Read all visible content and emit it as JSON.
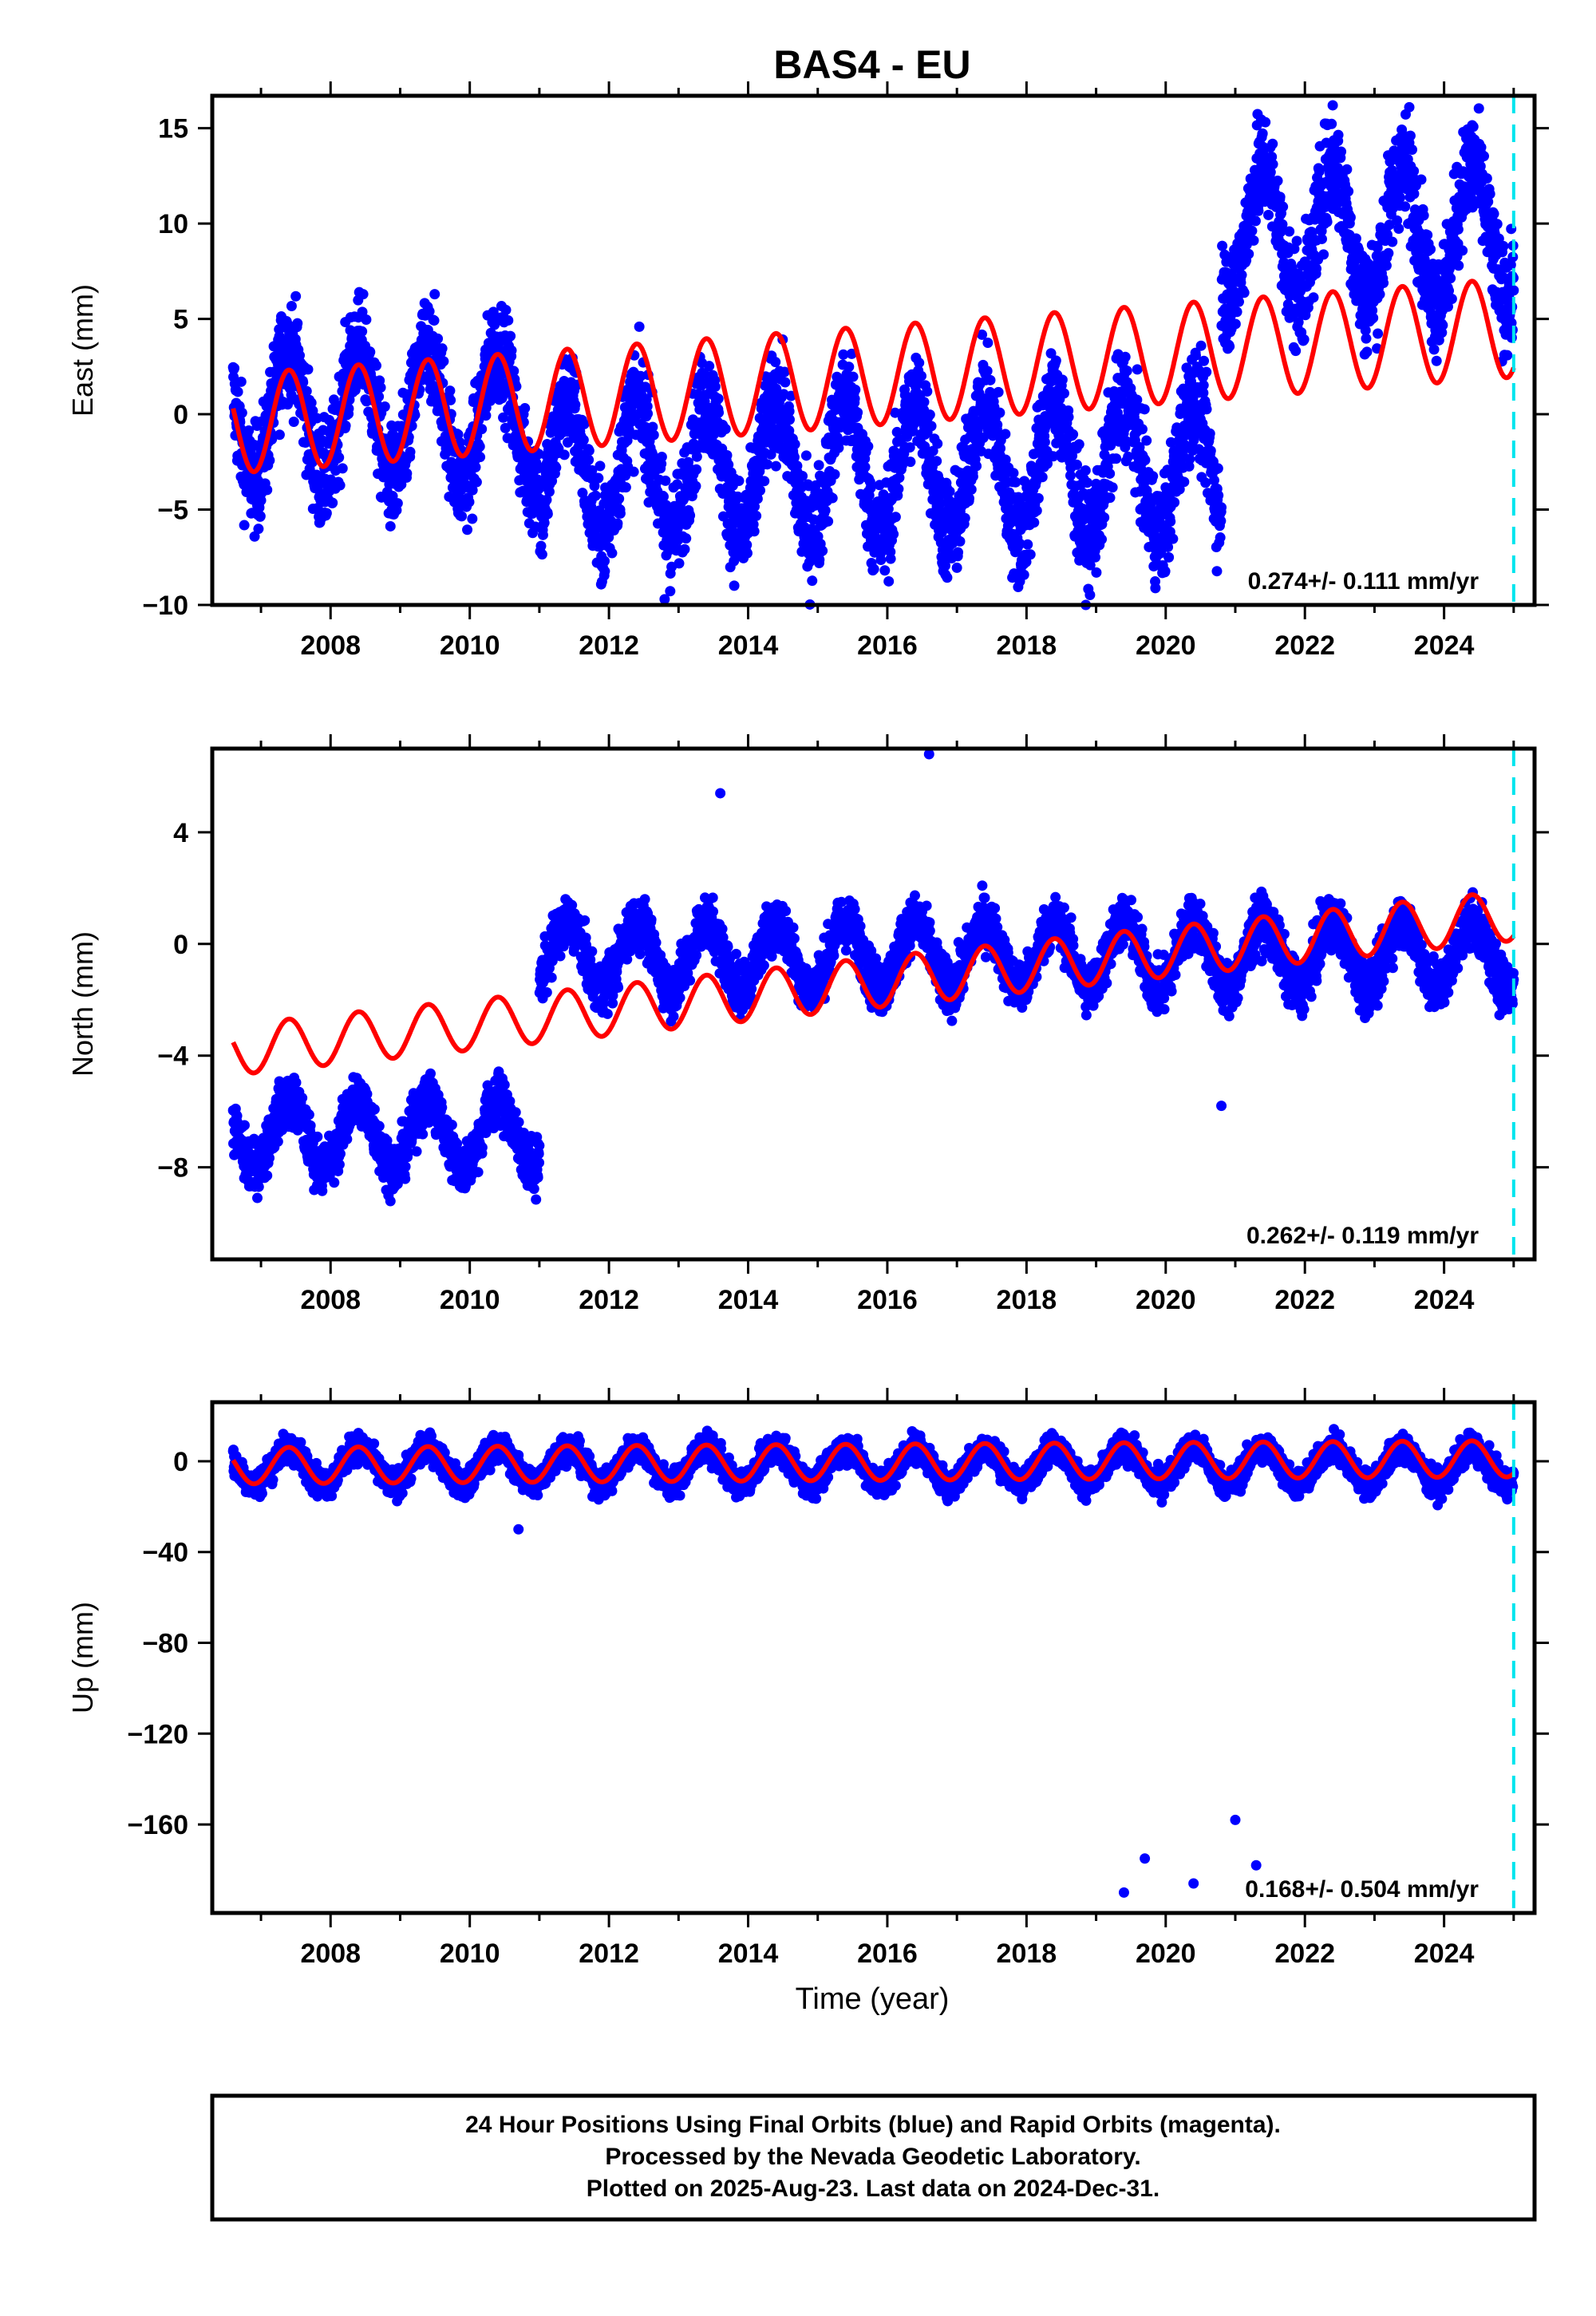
{
  "title": "BAS4 - EU",
  "x_axis_label": "Time (year)",
  "footer": {
    "line1": "24 Hour Positions Using Final Orbits (blue) and Rapid Orbits (magenta).",
    "line2": "Processed by the Nevada Geodetic Laboratory.",
    "line3": "Plotted on 2025-Aug-23. Last data on 2024-Dec-31."
  },
  "colors": {
    "final_orbits": "#0000ff",
    "rapid_orbits": "#ff00ff",
    "model_fit": "#ff0000",
    "last_data_marker": "#00e5ee",
    "frame": "#000000"
  },
  "chart_data": [
    {
      "type": "scatter",
      "panel": "east",
      "ylabel": "East (mm)",
      "rate_text": "0.274+/- 0.111 mm/yr",
      "xlim": [
        2006.3,
        2025.3
      ],
      "ylim": [
        -10,
        16.7
      ],
      "xticks": [
        2008,
        2010,
        2012,
        2014,
        2016,
        2018,
        2020,
        2022,
        2024
      ],
      "yticks": [
        -10,
        -5,
        0,
        5,
        10,
        15
      ],
      "ytick_labels": [
        "−10",
        "−5",
        "0",
        "5",
        "10",
        "15"
      ],
      "last_data_year": 2025.0,
      "observations": {
        "name": "24 hour positions",
        "x_range": [
          2006.6,
          2025.0
        ],
        "segments": [
          {
            "from": 2006.6,
            "to": 2011.0,
            "level_mm": 0.0
          },
          {
            "from": 2011.0,
            "to": 2020.8,
            "level_mm": -2.8
          },
          {
            "from": 2020.8,
            "to": 2025.0,
            "level_mm": 9.5
          }
        ],
        "annual_amplitude_mm": 3.5,
        "outliers": [
          [
            2012.8,
            -9.7
          ],
          [
            2022.4,
            16.2
          ],
          [
            2023.5,
            16.1
          ]
        ]
      },
      "model": {
        "name": "linear + seasonal fit",
        "start_value_mm": -0.5,
        "trend_mm_per_yr": 0.274,
        "annual_amplitude_mm": 2.6
      }
    },
    {
      "type": "scatter",
      "panel": "north",
      "ylabel": "North (mm)",
      "rate_text": "0.262+/- 0.119 mm/yr",
      "xlim": [
        2006.3,
        2025.3
      ],
      "ylim": [
        -11.3,
        7.0
      ],
      "xticks": [
        2008,
        2010,
        2012,
        2014,
        2016,
        2018,
        2020,
        2022,
        2024
      ],
      "yticks": [
        -8,
        -4,
        0,
        4
      ],
      "ytick_labels": [
        "−8",
        "−4",
        "0",
        "4"
      ],
      "last_data_year": 2025.0,
      "observations": {
        "name": "24 hour positions",
        "x_range": [
          2006.6,
          2025.0
        ],
        "segments": [
          {
            "from": 2006.6,
            "to": 2011.0,
            "level_mm": -6.8
          },
          {
            "from": 2011.0,
            "to": 2025.0,
            "level_mm": -0.4
          }
        ],
        "annual_amplitude_mm": 1.2,
        "outliers": [
          [
            2013.6,
            5.4
          ],
          [
            2016.6,
            6.8
          ],
          [
            2020.8,
            -5.8
          ]
        ]
      },
      "model": {
        "name": "linear + seasonal fit",
        "start_value_mm": -3.8,
        "trend_mm_per_yr": 0.262,
        "annual_amplitude_mm": 0.9
      }
    },
    {
      "type": "scatter",
      "panel": "up",
      "ylabel": "Up (mm)",
      "rate_text": "0.168+/- 0.504 mm/yr",
      "xlim": [
        2006.3,
        2025.3
      ],
      "ylim": [
        -199,
        26
      ],
      "xticks": [
        2008,
        2010,
        2012,
        2014,
        2016,
        2018,
        2020,
        2022,
        2024
      ],
      "yticks": [
        -160,
        -120,
        -80,
        -40,
        0
      ],
      "ytick_labels": [
        "−160",
        "−120",
        "−80",
        "−40",
        "0"
      ],
      "last_data_year": 2025.0,
      "observations": {
        "name": "24 hour positions",
        "x_range": [
          2006.6,
          2025.0
        ],
        "segments": [
          {
            "from": 2006.6,
            "to": 2025.0,
            "level_mm": -2.0
          }
        ],
        "annual_amplitude_mm": 8.0,
        "outliers": [
          [
            2010.7,
            -30
          ],
          [
            2019.4,
            -190
          ],
          [
            2019.7,
            -175
          ],
          [
            2020.4,
            -186
          ],
          [
            2021.0,
            -158
          ],
          [
            2021.3,
            -178
          ]
        ]
      },
      "model": {
        "name": "linear + seasonal fit",
        "start_value_mm": -2.0,
        "trend_mm_per_yr": 0.168,
        "annual_amplitude_mm": 8.0
      }
    }
  ]
}
